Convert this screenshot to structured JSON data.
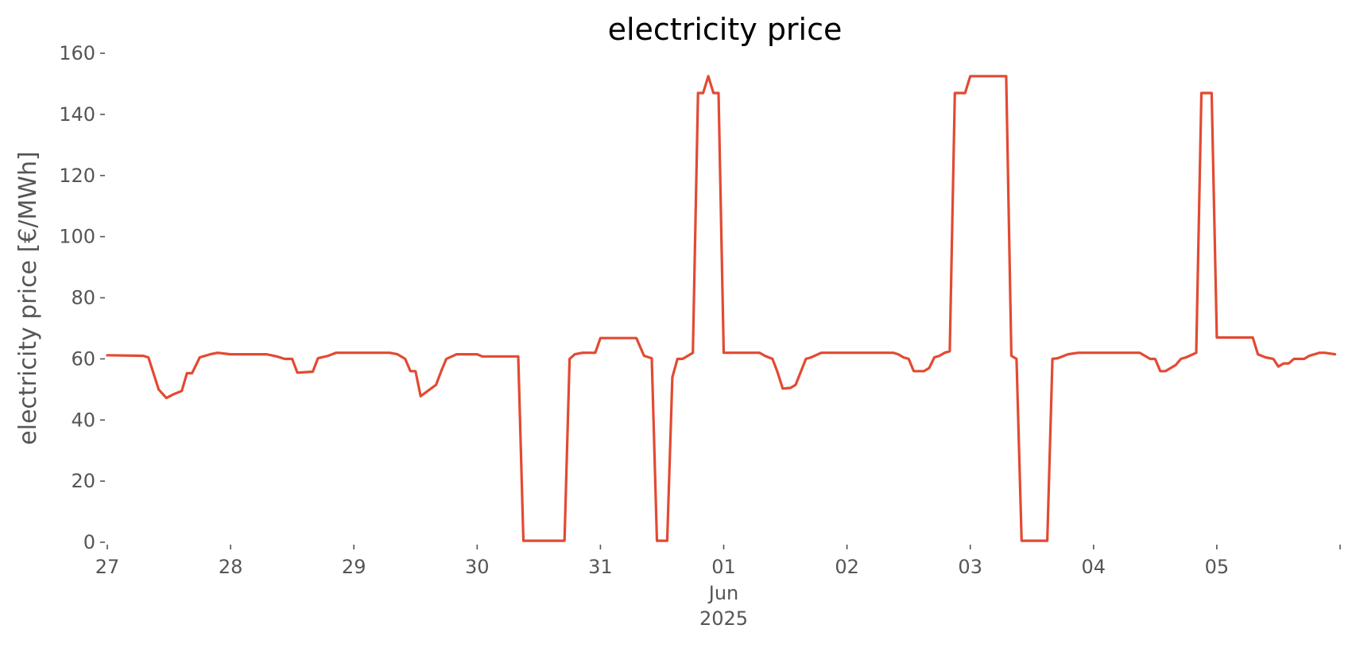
{
  "chart_data": {
    "type": "line",
    "title": "electricity price",
    "xlabel": "",
    "ylabel": "electricity price [€/MWh]",
    "ylim": [
      0,
      160
    ],
    "xlim": [
      "2025-05-27",
      "2025-06-06"
    ],
    "yticks": [
      0,
      20,
      40,
      60,
      80,
      100,
      120,
      140,
      160
    ],
    "xticks": [
      {
        "date": "2025-05-27",
        "label": "27"
      },
      {
        "date": "2025-05-28",
        "label": "28"
      },
      {
        "date": "2025-05-29",
        "label": "29"
      },
      {
        "date": "2025-05-30",
        "label": "30"
      },
      {
        "date": "2025-05-31",
        "label": "31"
      },
      {
        "date": "2025-06-01",
        "label": "01"
      },
      {
        "date": "2025-06-02",
        "label": "02"
      },
      {
        "date": "2025-06-03",
        "label": "03"
      },
      {
        "date": "2025-06-04",
        "label": "04"
      },
      {
        "date": "2025-06-05",
        "label": "05"
      }
    ],
    "x_secondary_labels": [
      "Jun",
      "2025"
    ],
    "grid": false,
    "series": [
      {
        "color": "#E24A33",
        "points": [
          [
            "2025-05-27 00:00",
            61.2
          ],
          [
            "2025-05-27 07:00",
            61.0
          ],
          [
            "2025-05-27 08:00",
            60.5
          ],
          [
            "2025-05-27 10:00",
            50.0
          ],
          [
            "2025-05-27 11:30",
            47.2
          ],
          [
            "2025-05-27 13:00",
            48.5
          ],
          [
            "2025-05-27 14:30",
            49.5
          ],
          [
            "2025-05-27 15:30",
            55.3
          ],
          [
            "2025-05-27 16:30",
            55.3
          ],
          [
            "2025-05-27 18:00",
            60.5
          ],
          [
            "2025-05-27 20:00",
            61.5
          ],
          [
            "2025-05-27 21:30",
            62.0
          ],
          [
            "2025-05-28 00:00",
            61.5
          ],
          [
            "2025-05-28 07:00",
            61.5
          ],
          [
            "2025-05-28 09:00",
            60.8
          ],
          [
            "2025-05-28 10:30",
            60.0
          ],
          [
            "2025-05-28 12:00",
            60.0
          ],
          [
            "2025-05-28 13:00",
            55.5
          ],
          [
            "2025-05-28 16:00",
            55.8
          ],
          [
            "2025-05-28 17:00",
            60.2
          ],
          [
            "2025-05-28 19:00",
            61.0
          ],
          [
            "2025-05-28 20:30",
            62.0
          ],
          [
            "2025-05-29 07:00",
            62.0
          ],
          [
            "2025-05-29 08:30",
            61.5
          ],
          [
            "2025-05-29 10:00",
            60.0
          ],
          [
            "2025-05-29 11:00",
            56.0
          ],
          [
            "2025-05-29 12:00",
            56.0
          ],
          [
            "2025-05-29 13:00",
            47.8
          ],
          [
            "2025-05-29 16:00",
            51.5
          ],
          [
            "2025-05-29 17:00",
            56.0
          ],
          [
            "2025-05-29 18:00",
            60.0
          ],
          [
            "2025-05-29 20:00",
            61.5
          ],
          [
            "2025-05-30 00:00",
            61.5
          ],
          [
            "2025-05-30 01:00",
            60.8
          ],
          [
            "2025-05-30 08:00",
            60.8
          ],
          [
            "2025-05-30 09:00",
            0.5
          ],
          [
            "2025-05-30 17:00",
            0.5
          ],
          [
            "2025-05-30 18:00",
            60.0
          ],
          [
            "2025-05-30 19:00",
            61.5
          ],
          [
            "2025-05-30 20:30",
            62.0
          ],
          [
            "2025-05-30 23:00",
            62.0
          ],
          [
            "2025-05-31 00:00",
            66.8
          ],
          [
            "2025-05-31 07:00",
            66.8
          ],
          [
            "2025-05-31 08:30",
            61.0
          ],
          [
            "2025-05-31 10:00",
            60.2
          ],
          [
            "2025-05-31 11:00",
            0.5
          ],
          [
            "2025-05-31 13:00",
            0.5
          ],
          [
            "2025-05-31 14:00",
            54.0
          ],
          [
            "2025-05-31 15:00",
            60.0
          ],
          [
            "2025-05-31 16:00",
            60.0
          ],
          [
            "2025-05-31 18:00",
            62.0
          ],
          [
            "2025-05-31 19:00",
            147.0
          ],
          [
            "2025-05-31 20:00",
            147.0
          ],
          [
            "2025-05-31 21:00",
            152.5
          ],
          [
            "2025-05-31 22:00",
            147.0
          ],
          [
            "2025-05-31 23:00",
            147.0
          ],
          [
            "2025-06-01 00:00",
            62.0
          ],
          [
            "2025-06-01 07:00",
            62.0
          ],
          [
            "2025-06-01 08:00",
            61.0
          ],
          [
            "2025-06-01 09:30",
            60.0
          ],
          [
            "2025-06-01 10:30",
            55.5
          ],
          [
            "2025-06-01 11:30",
            50.3
          ],
          [
            "2025-06-01 13:00",
            50.5
          ],
          [
            "2025-06-01 14:00",
            51.5
          ],
          [
            "2025-06-01 16:00",
            60.0
          ],
          [
            "2025-06-01 17:00",
            60.5
          ],
          [
            "2025-06-01 19:00",
            62.0
          ],
          [
            "2025-06-02 09:00",
            62.0
          ],
          [
            "2025-06-02 10:00",
            61.5
          ],
          [
            "2025-06-02 11:00",
            60.5
          ],
          [
            "2025-06-02 12:00",
            60.0
          ],
          [
            "2025-06-02 13:00",
            56.0
          ],
          [
            "2025-06-02 15:00",
            56.0
          ],
          [
            "2025-06-02 16:00",
            57.0
          ],
          [
            "2025-06-02 17:00",
            60.5
          ],
          [
            "2025-06-02 18:00",
            61.0
          ],
          [
            "2025-06-02 19:00",
            62.0
          ],
          [
            "2025-06-02 20:00",
            62.5
          ],
          [
            "2025-06-02 21:00",
            147.0
          ],
          [
            "2025-06-02 23:00",
            147.0
          ],
          [
            "2025-06-03 00:00",
            152.5
          ],
          [
            "2025-06-03 07:00",
            152.5
          ],
          [
            "2025-06-03 08:00",
            61.0
          ],
          [
            "2025-06-03 09:00",
            60.0
          ],
          [
            "2025-06-03 10:00",
            0.5
          ],
          [
            "2025-06-03 15:00",
            0.5
          ],
          [
            "2025-06-03 16:00",
            60.0
          ],
          [
            "2025-06-03 17:00",
            60.2
          ],
          [
            "2025-06-03 19:00",
            61.5
          ],
          [
            "2025-06-03 21:00",
            62.0
          ],
          [
            "2025-06-04 09:00",
            62.0
          ],
          [
            "2025-06-04 10:00",
            61.0
          ],
          [
            "2025-06-04 11:00",
            60.0
          ],
          [
            "2025-06-04 12:00",
            60.0
          ],
          [
            "2025-06-04 13:00",
            56.0
          ],
          [
            "2025-06-04 14:00",
            56.0
          ],
          [
            "2025-06-04 16:00",
            58.0
          ],
          [
            "2025-06-04 17:00",
            60.0
          ],
          [
            "2025-06-04 18:00",
            60.5
          ],
          [
            "2025-06-04 20:00",
            62.0
          ],
          [
            "2025-06-04 21:00",
            147.0
          ],
          [
            "2025-06-04 23:00",
            147.0
          ],
          [
            "2025-06-05 00:00",
            67.0
          ],
          [
            "2025-06-05 07:00",
            67.0
          ],
          [
            "2025-06-05 08:00",
            61.5
          ],
          [
            "2025-06-05 09:30",
            60.5
          ],
          [
            "2025-06-05 11:00",
            60.0
          ],
          [
            "2025-06-05 12:00",
            57.5
          ],
          [
            "2025-06-05 13:00",
            58.5
          ],
          [
            "2025-06-05 14:00",
            58.5
          ],
          [
            "2025-06-05 15:00",
            60.0
          ],
          [
            "2025-06-05 17:00",
            60.0
          ],
          [
            "2025-06-05 18:00",
            61.0
          ],
          [
            "2025-06-05 20:00",
            62.0
          ],
          [
            "2025-06-05 21:00",
            62.0
          ],
          [
            "2025-06-05 23:00",
            61.5
          ]
        ]
      }
    ]
  }
}
